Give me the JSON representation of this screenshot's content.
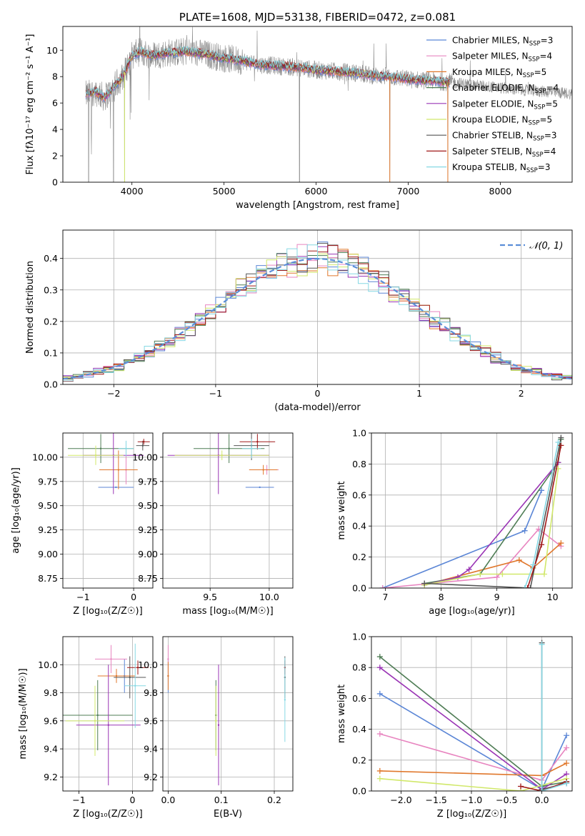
{
  "colors": {
    "chabrier_miles": "#5b86d6",
    "salpeter_miles": "#e885c0",
    "kroupa_miles": "#e0772b",
    "chabrier_elodie": "#4f7d55",
    "salpeter_elodie": "#9a35b5",
    "kroupa_elodie": "#d1e86a",
    "chabrier_stelib": "#555555",
    "salpeter_stelib": "#a01818",
    "kroupa_stelib": "#86d8e4",
    "data_gray": "#8c8c8c",
    "normal": "#5b8ed8"
  },
  "chart_data": [
    {
      "id": "spectrum",
      "type": "line",
      "title": "PLATE=1608, MJD=53138, FIBERID=0472, z=0.081",
      "xlabel": "wavelength [Angstrom, rest frame]",
      "ylabel": "Flux [fλ10⁻¹⁷ erg cm⁻² s⁻¹ A⁻¹]",
      "xlim": [
        3250,
        8780
      ],
      "ylim": [
        0,
        11.8
      ],
      "xticks": [
        4000,
        5000,
        6000,
        7000,
        8000
      ],
      "yticks": [
        0,
        2,
        4,
        6,
        8,
        10
      ],
      "legend": {
        "position": "top-right",
        "entries": [
          {
            "label": "Chabrier MILES, N",
            "sub": "SSP",
            "tail": "=3",
            "color": "chabrier_miles"
          },
          {
            "label": "Salpeter MILES, N",
            "sub": "SSP",
            "tail": "=4",
            "color": "salpeter_miles"
          },
          {
            "label": "Kroupa MILES, N",
            "sub": "SSP",
            "tail": "=5",
            "color": "kroupa_miles"
          },
          {
            "label": "Chabrier ELODIE, N",
            "sub": "SSP",
            "tail": "=4",
            "color": "chabrier_elodie"
          },
          {
            "label": "Salpeter ELODIE, N",
            "sub": "SSP",
            "tail": "=5",
            "color": "salpeter_elodie"
          },
          {
            "label": "Kroupa ELODIE, N",
            "sub": "SSP",
            "tail": "=5",
            "color": "kroupa_elodie"
          },
          {
            "label": "Chabrier STELIB, N",
            "sub": "SSP",
            "tail": "=3",
            "color": "chabrier_stelib"
          },
          {
            "label": "Salpeter STELIB, N",
            "sub": "SSP",
            "tail": "=4",
            "color": "salpeter_stelib"
          },
          {
            "label": "Kroupa STELIB, N",
            "sub": "SSP",
            "tail": "=3",
            "color": "kroupa_stelib"
          }
        ]
      },
      "continuum": [
        [
          3500,
          6.6
        ],
        [
          3600,
          6.9
        ],
        [
          3700,
          6.4
        ],
        [
          3800,
          7.2
        ],
        [
          3900,
          8.0
        ],
        [
          4000,
          9.6
        ],
        [
          4100,
          9.9
        ],
        [
          4200,
          9.6
        ],
        [
          4300,
          9.7
        ],
        [
          4400,
          9.8
        ],
        [
          4600,
          9.9
        ],
        [
          4800,
          9.7
        ],
        [
          5000,
          9.4
        ],
        [
          5200,
          9.2
        ],
        [
          5400,
          8.9
        ],
        [
          5600,
          8.8
        ],
        [
          5800,
          8.7
        ],
        [
          6000,
          8.5
        ],
        [
          6200,
          8.4
        ],
        [
          6400,
          8.3
        ],
        [
          6600,
          8.1
        ],
        [
          6800,
          8.0
        ],
        [
          7000,
          7.8
        ],
        [
          7200,
          7.7
        ],
        [
          7400,
          7.6
        ],
        [
          7800,
          7.3
        ],
        [
          8200,
          7.0
        ],
        [
          8600,
          6.8
        ],
        [
          8780,
          6.7
        ]
      ],
      "drops": [
        3530,
        3800,
        3920,
        5820,
        6800,
        7430
      ]
    },
    {
      "id": "residuals",
      "type": "histogram",
      "xlabel": "(data-model)/error",
      "ylabel": "Normed distribution",
      "xlim": [
        -2.5,
        2.5
      ],
      "ylim": [
        0,
        0.49
      ],
      "xticks": [
        -2,
        -1,
        0,
        1,
        2
      ],
      "yticks": [
        0.0,
        0.1,
        0.2,
        0.3,
        0.4
      ],
      "bin_width": 0.1,
      "legend": {
        "position": "top-right",
        "label": "𝒩(0, 1)"
      },
      "reference": {
        "name": "𝒩(0, 1)",
        "mu": 0,
        "sigma": 1
      }
    },
    {
      "id": "age_vs_z",
      "type": "errorbar",
      "xlabel": "Z [log₁₀(Z/Z☉)]",
      "ylabel": "age  [log₁₀(age/yr)]",
      "xlim": [
        -1.4,
        0.38
      ],
      "ylim": [
        8.65,
        10.25
      ],
      "xticks": [
        -1,
        0
      ],
      "yticks": [
        8.75,
        9.0,
        9.25,
        9.5,
        9.75,
        10.0
      ],
      "points": [
        {
          "s": "chabrier_miles",
          "x": -0.35,
          "xerr": 0.35,
          "y": 9.69,
          "yerr": 0.0
        },
        {
          "s": "salpeter_miles",
          "x": -0.15,
          "xerr": 0.2,
          "y": 9.87,
          "yerr": 0.15
        },
        {
          "s": "kroupa_miles",
          "x": -0.3,
          "xerr": 0.38,
          "y": 9.87,
          "yerr": 0.2
        },
        {
          "s": "chabrier_elodie",
          "x": -0.65,
          "xerr": 0.65,
          "y": 10.09,
          "yerr": 0.15
        },
        {
          "s": "salpeter_elodie",
          "x": -0.4,
          "xerr": 0.6,
          "y": 10.02,
          "yerr": 0.4
        },
        {
          "s": "kroupa_elodie",
          "x": -0.75,
          "xerr": 0.55,
          "y": 10.02,
          "yerr": 0.1
        },
        {
          "s": "chabrier_stelib",
          "x": 0.18,
          "xerr": 0.13,
          "y": 10.12,
          "yerr": 0.05
        },
        {
          "s": "salpeter_stelib",
          "x": 0.2,
          "xerr": 0.12,
          "y": 10.16,
          "yerr": 0.03
        },
        {
          "s": "kroupa_stelib",
          "x": -0.15,
          "xerr": 0.15,
          "y": 10.09,
          "yerr": 0.08
        }
      ]
    },
    {
      "id": "age_vs_mass",
      "type": "errorbar",
      "xlabel": "mass [log₁₀(M/M☉)]",
      "ylabel": "",
      "xlim": [
        9.1,
        10.2
      ],
      "ylim": [
        8.65,
        10.25
      ],
      "xticks": [
        9.5,
        10.0
      ],
      "yticks": [
        8.75,
        9.0,
        9.25,
        9.5,
        9.75,
        10.0
      ],
      "points": [
        {
          "s": "chabrier_miles",
          "x": 9.92,
          "xerr": 0.12,
          "y": 9.69,
          "yerr": 0.0
        },
        {
          "s": "salpeter_miles",
          "x": 9.98,
          "xerr": 0.1,
          "y": 9.87,
          "yerr": 0.05
        },
        {
          "s": "kroupa_miles",
          "x": 9.95,
          "xerr": 0.12,
          "y": 9.87,
          "yerr": 0.05
        },
        {
          "s": "chabrier_elodie",
          "x": 9.66,
          "xerr": 0.3,
          "y": 10.09,
          "yerr": 0.15
        },
        {
          "s": "salpeter_elodie",
          "x": 9.57,
          "xerr": 0.43,
          "y": 10.02,
          "yerr": 0.4
        },
        {
          "s": "kroupa_elodie",
          "x": 9.6,
          "xerr": 0.4,
          "y": 10.02,
          "yerr": 0.05
        },
        {
          "s": "chabrier_stelib",
          "x": 9.85,
          "xerr": 0.15,
          "y": 10.12,
          "yerr": 0.15
        },
        {
          "s": "salpeter_stelib",
          "x": 9.9,
          "xerr": 0.15,
          "y": 10.16,
          "yerr": 0.08
        },
        {
          "s": "kroupa_stelib",
          "x": 9.85,
          "xerr": 0.08,
          "y": 10.09,
          "yerr": 0.1
        }
      ]
    },
    {
      "id": "massweight_vs_age",
      "type": "line",
      "xlabel": "age  [log₁₀(age/yr)]",
      "ylabel": "mass weight",
      "xlim": [
        6.75,
        10.35
      ],
      "ylim": [
        0,
        1
      ],
      "xticks": [
        7,
        8,
        9,
        10
      ],
      "yticks": [
        0.0,
        0.2,
        0.4,
        0.6,
        0.8,
        1.0
      ],
      "series": [
        {
          "s": "chabrier_miles",
          "x": [
            6.95,
            9.5,
            9.8
          ],
          "y": [
            0.0,
            0.37,
            0.63
          ]
        },
        {
          "s": "salpeter_miles",
          "x": [
            6.95,
            9.0,
            9.75,
            10.15
          ],
          "y": [
            0.0,
            0.07,
            0.38,
            0.27
          ]
        },
        {
          "s": "kroupa_miles",
          "x": [
            7.7,
            9.4,
            9.65,
            10.15
          ],
          "y": [
            0.02,
            0.18,
            0.13,
            0.29
          ]
        },
        {
          "s": "chabrier_elodie",
          "x": [
            7.7,
            8.7,
            10.1,
            10.15
          ],
          "y": [
            0.03,
            0.09,
            0.81,
            0.96
          ]
        },
        {
          "s": "salpeter_elodie",
          "x": [
            7.7,
            8.3,
            8.5,
            10.1
          ],
          "y": [
            0.02,
            0.07,
            0.12,
            0.81
          ]
        },
        {
          "s": "kroupa_elodie",
          "x": [
            7.7,
            8.7,
            9.1,
            9.85,
            10.1
          ],
          "y": [
            0.02,
            0.09,
            0.09,
            0.09,
            0.77
          ]
        },
        {
          "s": "chabrier_stelib",
          "x": [
            7.7,
            9.6,
            10.15
          ],
          "y": [
            0.03,
            0.0,
            0.97
          ]
        },
        {
          "s": "salpeter_stelib",
          "x": [
            9.55,
            9.8,
            10.15
          ],
          "y": [
            0.0,
            0.28,
            0.92
          ]
        },
        {
          "s": "kroupa_stelib",
          "x": [
            9.5,
            9.65,
            10.1
          ],
          "y": [
            0.0,
            0.15,
            0.94
          ]
        }
      ]
    },
    {
      "id": "mass_vs_z",
      "type": "errorbar",
      "xlabel": "Z [log₁₀(Z/Z☉)]",
      "ylabel": "mass [log₁₀(M/M☉)]",
      "xlim": [
        -1.3,
        0.38
      ],
      "ylim": [
        9.1,
        10.2
      ],
      "xticks": [
        -1,
        0
      ],
      "yticks": [
        9.2,
        9.4,
        9.6,
        9.8,
        10.0
      ],
      "points": [
        {
          "s": "chabrier_miles",
          "x": -0.15,
          "xerr": 0.2,
          "y": 9.92,
          "yerr": 0.12
        },
        {
          "s": "salpeter_miles",
          "x": -0.4,
          "xerr": 0.3,
          "y": 10.04,
          "yerr": 0.1
        },
        {
          "s": "kroupa_miles",
          "x": -0.3,
          "xerr": 0.35,
          "y": 9.92,
          "yerr": 0.05
        },
        {
          "s": "chabrier_elodie",
          "x": -0.65,
          "xerr": 0.65,
          "y": 9.64,
          "yerr": 0.25
        },
        {
          "s": "salpeter_elodie",
          "x": -0.45,
          "xerr": 0.6,
          "y": 9.57,
          "yerr": 0.43
        },
        {
          "s": "kroupa_elodie",
          "x": -0.7,
          "xerr": 0.55,
          "y": 9.6,
          "yerr": 0.25
        },
        {
          "s": "chabrier_stelib",
          "x": -0.05,
          "xerr": 0.3,
          "y": 9.91,
          "yerr": 0.15
        },
        {
          "s": "salpeter_stelib",
          "x": 0.1,
          "xerr": 0.2,
          "y": 9.98,
          "yerr": 0.05
        },
        {
          "s": "kroupa_stelib",
          "x": 0.05,
          "xerr": 0.2,
          "y": 9.85,
          "yerr": 0.3
        }
      ]
    },
    {
      "id": "mass_vs_ebv",
      "type": "errorbar",
      "xlabel": "E(B-V)",
      "ylabel": "",
      "xlim": [
        -0.01,
        0.235
      ],
      "ylim": [
        9.1,
        10.2
      ],
      "xticks": [
        0.0,
        0.1,
        0.2
      ],
      "yticks": [
        9.2,
        9.4,
        9.6,
        9.8,
        10.0
      ],
      "points": [
        {
          "s": "chabrier_miles",
          "x": 0.0,
          "xerr": 0,
          "y": 9.92,
          "yerr": 0.12
        },
        {
          "s": "salpeter_miles",
          "x": 0.0,
          "xerr": 0,
          "y": 10.04,
          "yerr": 0.1
        },
        {
          "s": "kroupa_miles",
          "x": 0.0,
          "xerr": 0,
          "y": 9.92,
          "yerr": 0.1
        },
        {
          "s": "chabrier_elodie",
          "x": 0.09,
          "xerr": 0,
          "y": 9.64,
          "yerr": 0.25
        },
        {
          "s": "salpeter_elodie",
          "x": 0.095,
          "xerr": 0,
          "y": 9.57,
          "yerr": 0.43
        },
        {
          "s": "kroupa_elodie",
          "x": 0.09,
          "xerr": 0,
          "y": 9.6,
          "yerr": 0.25
        },
        {
          "s": "chabrier_stelib",
          "x": 0.22,
          "xerr": 0,
          "y": 9.91,
          "yerr": 0.15
        },
        {
          "s": "salpeter_stelib",
          "x": 0.22,
          "xerr": 0,
          "y": 9.98,
          "yerr": 0.05
        },
        {
          "s": "kroupa_stelib",
          "x": 0.22,
          "xerr": 0,
          "y": 9.75,
          "yerr": 0.3
        }
      ]
    },
    {
      "id": "massweight_vs_z",
      "type": "line",
      "xlabel": "Z [log₁₀(Z/Z☉)]",
      "ylabel": "mass weight",
      "xlim": [
        -2.42,
        0.43
      ],
      "ylim": [
        0,
        1
      ],
      "xticks": [
        -2.0,
        -1.5,
        -1.0,
        -0.5,
        0.0
      ],
      "yticks": [
        0.0,
        0.2,
        0.4,
        0.6,
        0.8,
        1.0
      ],
      "series": [
        {
          "s": "chabrier_miles",
          "x": [
            -2.3,
            0.0,
            0.35
          ],
          "y": [
            0.63,
            0.01,
            0.36
          ]
        },
        {
          "s": "salpeter_miles",
          "x": [
            -2.3,
            0.0,
            0.35
          ],
          "y": [
            0.37,
            0.07,
            0.28
          ]
        },
        {
          "s": "kroupa_miles",
          "x": [
            -2.3,
            0.0,
            0.35
          ],
          "y": [
            0.13,
            0.1,
            0.18
          ]
        },
        {
          "s": "chabrier_elodie",
          "x": [
            -2.3,
            0.0,
            0.35
          ],
          "y": [
            0.87,
            0.03,
            0.06
          ]
        },
        {
          "s": "salpeter_elodie",
          "x": [
            -2.3,
            0.0,
            0.35
          ],
          "y": [
            0.8,
            0.01,
            0.11
          ]
        },
        {
          "s": "kroupa_elodie",
          "x": [
            -2.3,
            -0.3,
            0.35
          ],
          "y": [
            0.08,
            0.0,
            0.08
          ]
        },
        {
          "s": "chabrier_stelib",
          "x": [
            0.0,
            0.0,
            0.35
          ],
          "y": [
            0.96,
            0.01,
            0.05
          ]
        },
        {
          "s": "salpeter_stelib",
          "x": [
            -0.3,
            0.0,
            0.35
          ],
          "y": [
            0.03,
            0.0,
            0.06
          ]
        },
        {
          "s": "kroupa_stelib",
          "x": [
            0.0,
            0.0,
            0.35
          ],
          "y": [
            0.95,
            0.0,
            0.05
          ]
        }
      ]
    }
  ]
}
